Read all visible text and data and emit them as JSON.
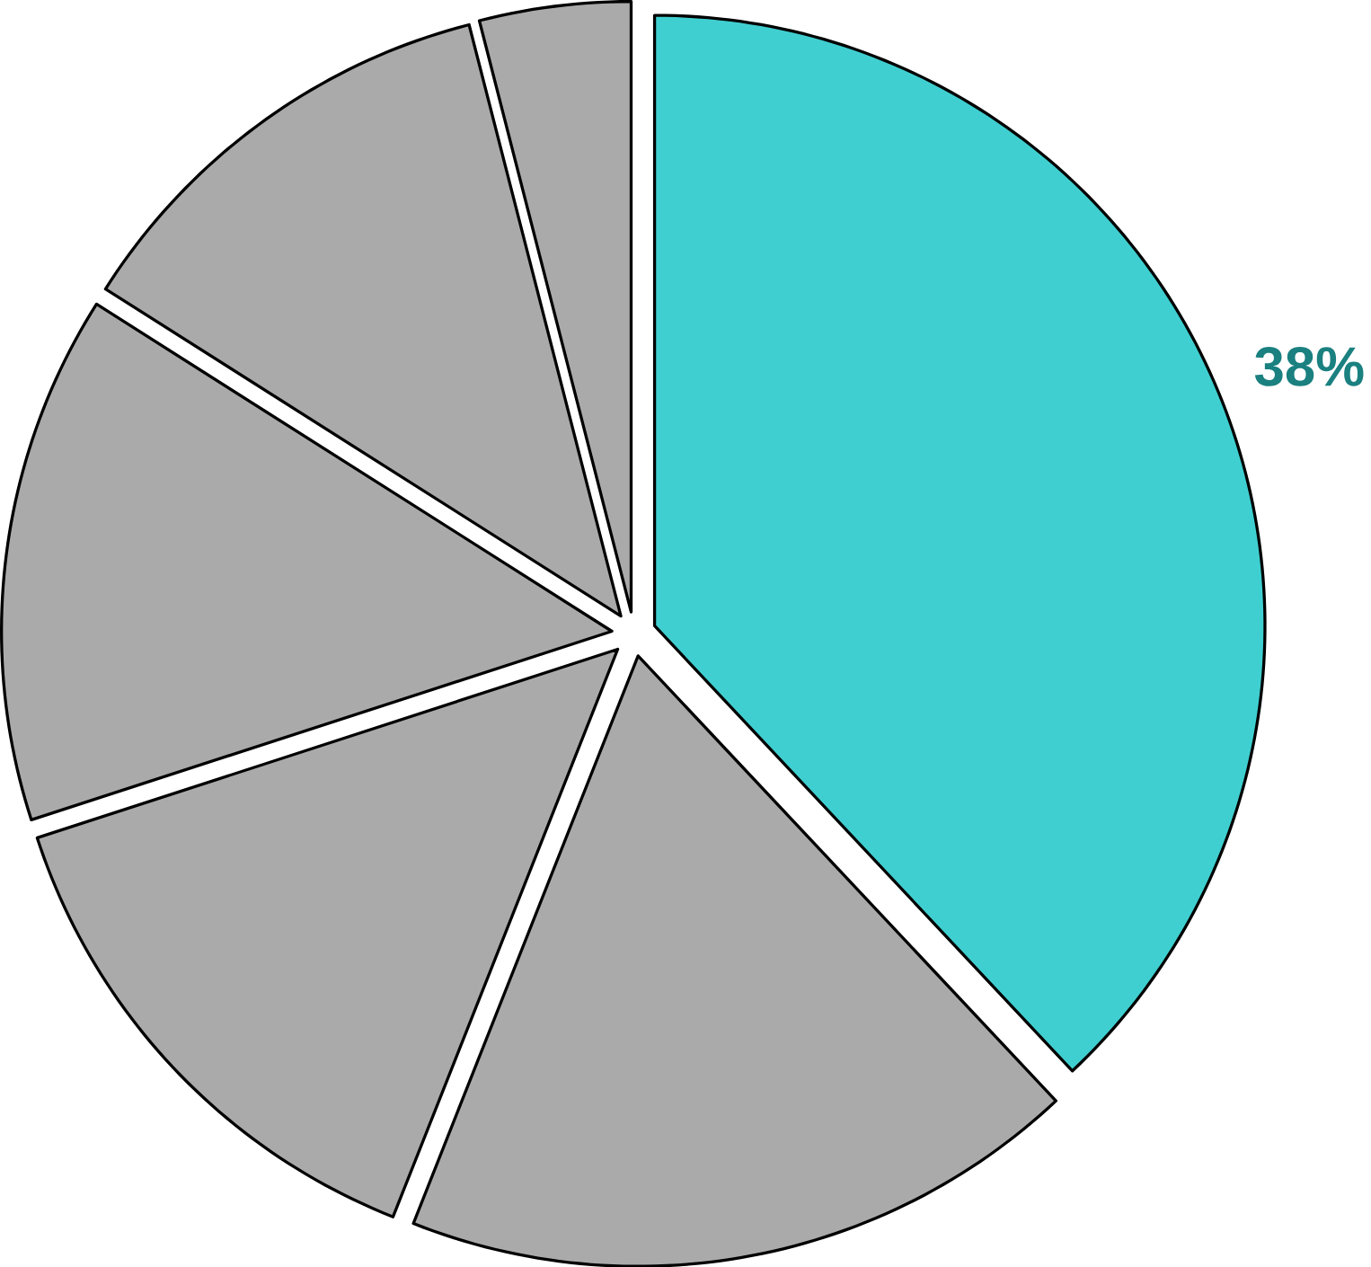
{
  "chart_data": {
    "type": "pie",
    "categories": [
      null,
      null,
      null,
      null,
      null,
      null
    ],
    "values": [
      38,
      18,
      14,
      14,
      12,
      4
    ],
    "colors": [
      "#40cfd0",
      "#aaaaaa",
      "#aaaaaa",
      "#aaaaaa",
      "#aaaaaa",
      "#aaaaaa"
    ],
    "value_labels": [
      "38%",
      null,
      null,
      null,
      null,
      null
    ]
  }
}
